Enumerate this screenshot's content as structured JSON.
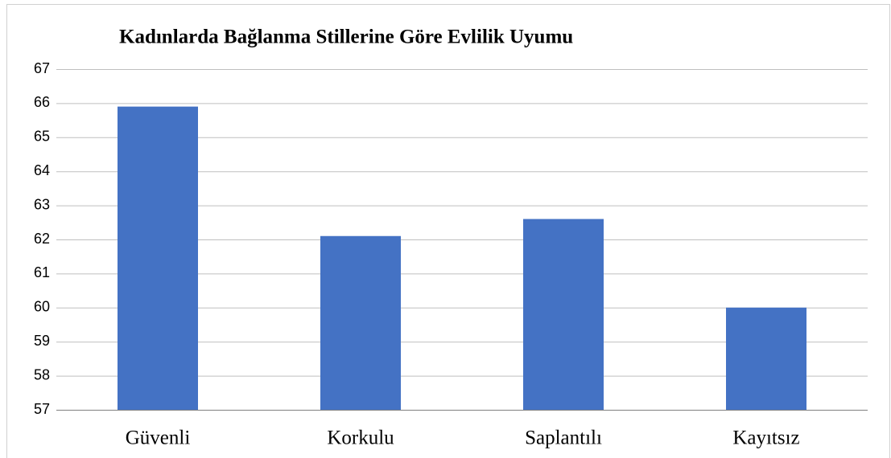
{
  "chart_data": {
    "type": "bar",
    "title": "Kadınlarda Bağlanma Stillerine Göre Evlilik Uyumu",
    "categories": [
      "Güvenli",
      "Korkulu",
      "Saplantılı",
      "Kayıtsız"
    ],
    "values": [
      65.9,
      62.1,
      62.6,
      60.0
    ],
    "color": "#4472c4",
    "ylim": [
      57,
      67
    ],
    "yticks": [
      57,
      58,
      59,
      60,
      61,
      62,
      63,
      64,
      65,
      66,
      67
    ],
    "grid": true
  }
}
